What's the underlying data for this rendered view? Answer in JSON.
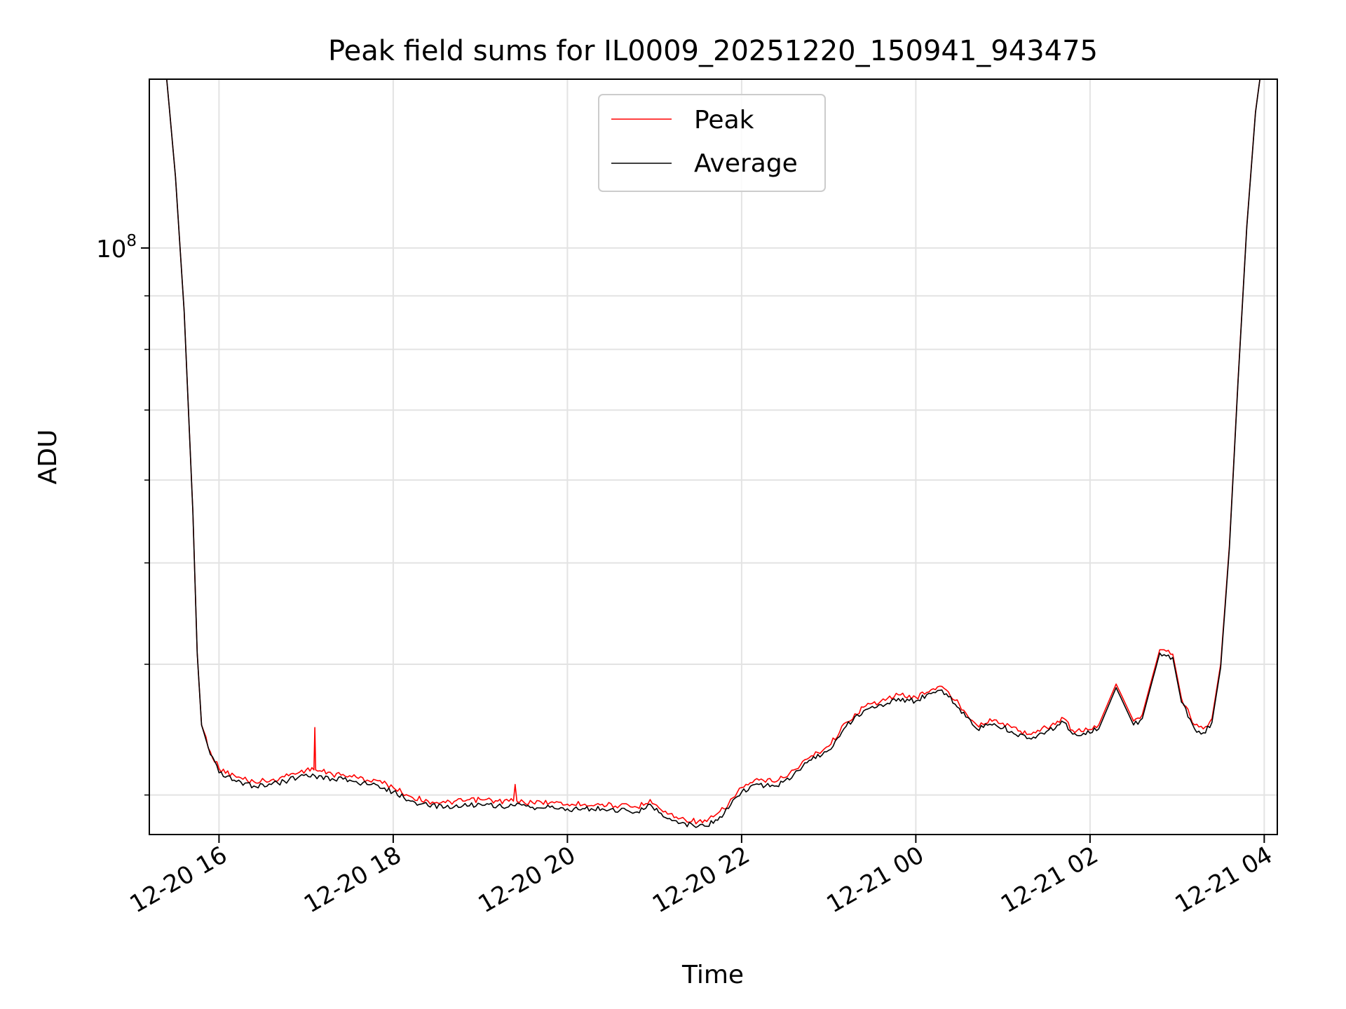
{
  "chart_data": {
    "type": "line",
    "title": "Peak field sums for IL0009_20251220_150941_943475",
    "xlabel": "Time",
    "ylabel": "ADU",
    "yscale": "log",
    "xlim_hours": [
      15.2,
      28.15
    ],
    "ylim": [
      27500000,
      145000000
    ],
    "grid": true,
    "legend_location": "upper center",
    "x_ticks": [
      {
        "value": 16,
        "label": "12-20 16"
      },
      {
        "value": 18,
        "label": "12-20 18"
      },
      {
        "value": 20,
        "label": "12-20 20"
      },
      {
        "value": 22,
        "label": "12-20 22"
      },
      {
        "value": 24,
        "label": "12-21 00"
      },
      {
        "value": 26,
        "label": "12-21 02"
      },
      {
        "value": 28,
        "label": "12-21 04"
      }
    ],
    "y_major_ticks": [
      {
        "value": 100000000,
        "base": "10",
        "exponent": "8"
      }
    ],
    "y_minor_ticks": [
      30000000,
      40000000,
      50000000,
      60000000,
      70000000,
      80000000,
      90000000,
      200000000
    ],
    "x_unit": "hours since 12-20 00:00",
    "series": [
      {
        "name": "Peak",
        "color": "#ff0000",
        "x": [
          15.4,
          15.5,
          15.6,
          15.7,
          15.75,
          15.8,
          15.9,
          16.0,
          16.2,
          16.4,
          16.6,
          16.8,
          17.0,
          17.09,
          17.1,
          17.11,
          17.3,
          17.5,
          17.7,
          17.8,
          18.0,
          18.2,
          18.4,
          18.6,
          18.8,
          19.0,
          19.2,
          19.38,
          19.4,
          19.42,
          19.6,
          19.8,
          20.0,
          20.2,
          20.4,
          20.6,
          20.8,
          20.95,
          21.1,
          21.3,
          21.5,
          21.6,
          21.7,
          21.8,
          22.0,
          22.2,
          22.4,
          22.6,
          22.8,
          23.0,
          23.2,
          23.4,
          23.6,
          23.8,
          24.0,
          24.2,
          24.3,
          24.5,
          24.7,
          24.9,
          25.1,
          25.3,
          25.5,
          25.7,
          25.8,
          25.9,
          26.1,
          26.3,
          26.5,
          26.6,
          26.8,
          26.95,
          27.05,
          27.2,
          27.3,
          27.4,
          27.5,
          27.6,
          27.7,
          27.8,
          27.9,
          27.95
        ],
        "y": [
          145000000,
          117000000,
          87000000,
          56000000,
          41000000,
          35000000,
          33000000,
          31800000,
          31200000,
          30900000,
          31000000,
          31300000,
          31700000,
          31700000,
          34800000,
          31700000,
          31400000,
          31300000,
          31000000,
          31000000,
          30500000,
          29900000,
          29600000,
          29500000,
          29600000,
          29700000,
          29600000,
          29600000,
          30700000,
          29600000,
          29500000,
          29500000,
          29400000,
          29400000,
          29400000,
          29300000,
          29200000,
          29700000,
          28900000,
          28500000,
          28300000,
          28300000,
          28700000,
          29100000,
          30500000,
          31000000,
          30900000,
          31700000,
          32700000,
          33400000,
          35200000,
          36400000,
          36900000,
          37400000,
          37200000,
          37900000,
          38100000,
          36600000,
          35000000,
          35400000,
          34800000,
          34300000,
          34800000,
          35500000,
          34600000,
          34500000,
          35000000,
          38300000,
          35300000,
          35800000,
          41300000,
          40900000,
          37100000,
          35000000,
          34700000,
          35500000,
          40000000,
          52000000,
          75000000,
          105000000,
          135000000,
          145000000
        ]
      },
      {
        "name": "Average",
        "color": "#000000",
        "x": [
          15.4,
          15.5,
          15.6,
          15.7,
          15.75,
          15.8,
          15.9,
          16.0,
          16.2,
          16.4,
          16.6,
          16.8,
          17.0,
          17.1,
          17.3,
          17.5,
          17.7,
          17.8,
          18.0,
          18.2,
          18.4,
          18.6,
          18.8,
          19.0,
          19.2,
          19.4,
          19.6,
          19.8,
          20.0,
          20.2,
          20.4,
          20.6,
          20.8,
          20.95,
          21.1,
          21.3,
          21.5,
          21.6,
          21.7,
          21.8,
          22.0,
          22.2,
          22.4,
          22.6,
          22.8,
          23.0,
          23.2,
          23.4,
          23.6,
          23.8,
          24.0,
          24.2,
          24.3,
          24.5,
          24.7,
          24.9,
          25.1,
          25.3,
          25.5,
          25.7,
          25.8,
          25.9,
          26.1,
          26.3,
          26.5,
          26.6,
          26.8,
          26.95,
          27.05,
          27.2,
          27.3,
          27.4,
          27.5,
          27.6,
          27.7,
          27.8,
          27.9,
          27.95
        ],
        "y": [
          145000000,
          117000000,
          87000000,
          56000000,
          41000000,
          35000000,
          32800000,
          31500000,
          30900000,
          30600000,
          30700000,
          31000000,
          31400000,
          31300000,
          31100000,
          31000000,
          30700000,
          30700000,
          30200000,
          29600000,
          29300000,
          29200000,
          29300000,
          29400000,
          29300000,
          29300000,
          29200000,
          29200000,
          29100000,
          29100000,
          29100000,
          29000000,
          28900000,
          29400000,
          28600000,
          28200000,
          28000000,
          28000000,
          28400000,
          28800000,
          30200000,
          30700000,
          30600000,
          31400000,
          32400000,
          33100000,
          34900000,
          36100000,
          36600000,
          37100000,
          36900000,
          37600000,
          37800000,
          36300000,
          34700000,
          35100000,
          34500000,
          34000000,
          34500000,
          35200000,
          34300000,
          34200000,
          34700000,
          38000000,
          35000000,
          35500000,
          41000000,
          40600000,
          36800000,
          34700000,
          34400000,
          35200000,
          39700000,
          51700000,
          74700000,
          104700000,
          134700000,
          145000000
        ]
      }
    ]
  }
}
